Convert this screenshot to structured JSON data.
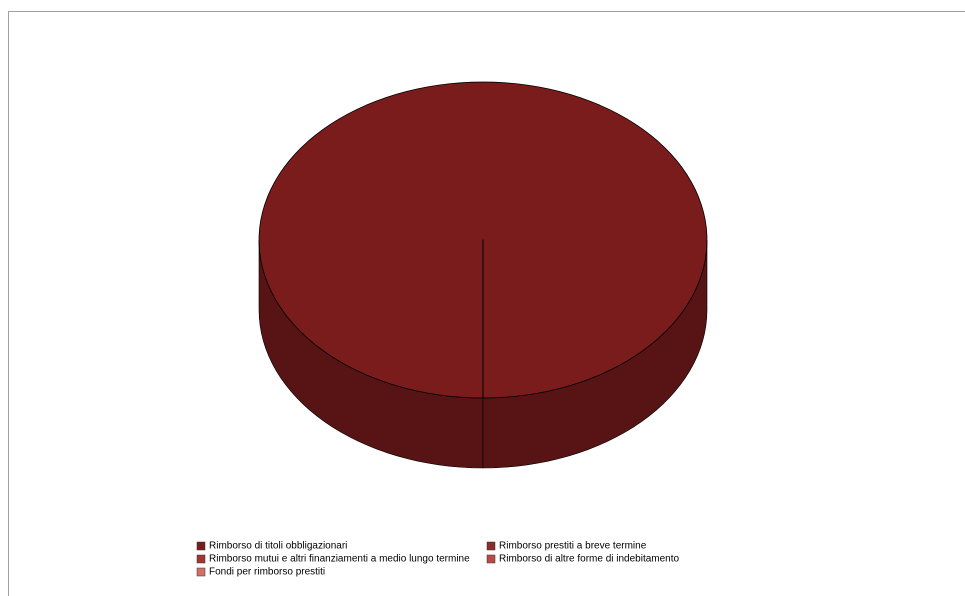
{
  "chart_data": {
    "type": "pie3d",
    "categories": [
      "Rimborso di titoli obbligazionari",
      "Rimborso prestiti a breve termine",
      "Rimborso mutui e altri finanziamenti a medio lungo termine",
      "Rimborso di altre forme di indebitamento",
      "Fondi per rimborso prestiti"
    ],
    "values": [
      100,
      0,
      0,
      0,
      0
    ],
    "colors": [
      "#7a1c1c",
      "#8c2b2b",
      "#a53535",
      "#b94a45",
      "#d27066"
    ]
  }
}
